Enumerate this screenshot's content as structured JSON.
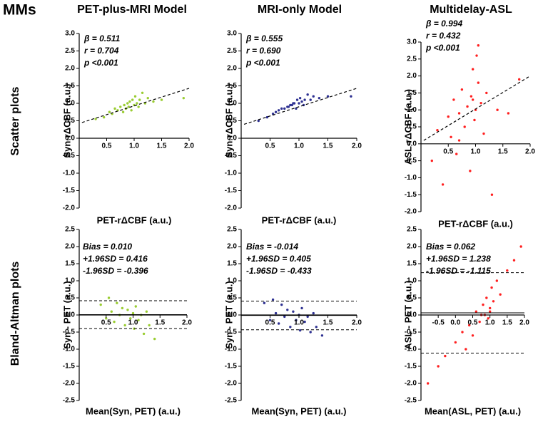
{
  "figure": {
    "label": "MMs",
    "row_labels": [
      "Scatter plots",
      "Bland-Altman plots"
    ],
    "column_titles": [
      "PET-plus-MRI Model",
      "MRI-only Model",
      "Multidelay-ASL"
    ]
  },
  "chart_data": [
    {
      "type": "scatter",
      "xlabel": "PET-rΔCBF (a.u.)",
      "ylabel": "Syn-rΔCBF (a.u.)",
      "annotations": [
        "β = 0.511",
        "r = 0.704",
        "p <0.001"
      ],
      "xlim": [
        0,
        2
      ],
      "ylim": [
        -2,
        3
      ],
      "xticks": [
        0.5,
        {
          "value": 1,
          "label": "1.0"
        },
        1.5,
        {
          "value": 2,
          "label": "2.0"
        }
      ],
      "yticks": [
        {
          "value": -2,
          "label": "-2.0"
        },
        -1.5,
        {
          "value": -1,
          "label": "-1.0"
        },
        -0.5,
        {
          "value": 0,
          "label": "0.0"
        },
        0.5,
        {
          "value": 1,
          "label": "1.0"
        },
        1.5,
        {
          "value": 2,
          "label": "2.0"
        },
        2.5,
        {
          "value": 3,
          "label": "3.0"
        }
      ],
      "color": "#9acd32",
      "x": [
        0.3,
        0.45,
        0.55,
        0.6,
        0.65,
        0.7,
        0.75,
        0.8,
        0.82,
        0.85,
        0.88,
        0.9,
        0.92,
        0.95,
        0.97,
        1.0,
        1.02,
        1.05,
        1.08,
        1.1,
        1.15,
        1.2,
        1.25,
        1.35,
        1.5,
        1.9
      ],
      "values": [
        0.55,
        0.6,
        0.75,
        0.7,
        0.85,
        0.8,
        0.9,
        0.75,
        0.95,
        0.85,
        1.0,
        0.9,
        1.05,
        0.8,
        1.1,
        0.95,
        1.2,
        1.0,
        0.9,
        1.1,
        1.3,
        1.0,
        1.15,
        1.05,
        1.1,
        1.15
      ],
      "fit_line": {
        "x": [
          0.05,
          2
        ],
        "values": [
          0.45,
          1.43
        ]
      }
    },
    {
      "type": "scatter",
      "xlabel": "PET-rΔCBF (a.u.)",
      "ylabel": "Syn-rΔCBF (a.u.)",
      "annotations": [
        "β = 0.555",
        "r = 0.690",
        "p <0.001"
      ],
      "xlim": [
        0,
        2
      ],
      "ylim": [
        -2,
        3
      ],
      "xticks": [
        0.5,
        {
          "value": 1,
          "label": "1.0"
        },
        1.5,
        {
          "value": 2,
          "label": "2.0"
        }
      ],
      "yticks": [
        {
          "value": -2,
          "label": "-2.0"
        },
        -1.5,
        {
          "value": -1,
          "label": "-1.0"
        },
        -0.5,
        {
          "value": 0,
          "label": "0.0"
        },
        0.5,
        {
          "value": 1,
          "label": "1.0"
        },
        1.5,
        {
          "value": 2,
          "label": "2.0"
        },
        2.5,
        {
          "value": 3,
          "label": "3.0"
        }
      ],
      "color": "#2e3192",
      "x": [
        0.3,
        0.45,
        0.55,
        0.6,
        0.65,
        0.7,
        0.75,
        0.8,
        0.82,
        0.85,
        0.88,
        0.9,
        0.92,
        0.95,
        0.97,
        1.0,
        1.02,
        1.05,
        1.08,
        1.1,
        1.15,
        1.2,
        1.25,
        1.35,
        1.5,
        1.9
      ],
      "values": [
        0.5,
        0.6,
        0.7,
        0.75,
        0.8,
        0.85,
        0.85,
        0.9,
        0.9,
        0.95,
        0.95,
        1.0,
        1.0,
        0.85,
        1.1,
        1.0,
        1.15,
        1.05,
        0.95,
        1.1,
        1.25,
        1.1,
        1.2,
        1.15,
        1.2,
        1.2
      ],
      "fit_line": {
        "x": [
          0.05,
          2
        ],
        "values": [
          0.4,
          1.43
        ]
      }
    },
    {
      "type": "scatter",
      "xlabel": "PET-rΔCBF (a.u.)",
      "ylabel": "ASL-rΔCBF (a.u.)",
      "annotations": [
        "β = 0.994",
        "r = 0.432",
        "p <0.001"
      ],
      "xlim": [
        0,
        2
      ],
      "ylim": [
        -2,
        3
      ],
      "xticks": [
        0.5,
        {
          "value": 1,
          "label": "1.0"
        },
        1.5,
        {
          "value": 2,
          "label": "2.0"
        }
      ],
      "yticks": [
        {
          "value": -2,
          "label": "-2.0"
        },
        -1.5,
        {
          "value": -1,
          "label": "-1.0"
        },
        -0.5,
        {
          "value": 0,
          "label": "0.0"
        },
        0.5,
        {
          "value": 1,
          "label": "1.0"
        },
        1.5,
        {
          "value": 2,
          "label": "2.0"
        },
        2.5,
        {
          "value": 3,
          "label": "3.0"
        }
      ],
      "color": "#ff2020",
      "x": [
        0.2,
        0.3,
        0.4,
        0.5,
        0.55,
        0.6,
        0.65,
        0.7,
        0.75,
        0.8,
        0.85,
        0.9,
        0.92,
        0.95,
        0.98,
        1.0,
        1.02,
        1.05,
        1.1,
        1.15,
        1.2,
        1.3,
        1.4,
        1.6,
        1.8,
        0.95,
        0.7,
        1.05
      ],
      "values": [
        -0.5,
        0.4,
        -1.2,
        0.8,
        0.2,
        1.3,
        -0.3,
        0.9,
        1.6,
        0.5,
        1.1,
        -0.8,
        1.4,
        2.2,
        0.7,
        1.0,
        2.6,
        1.8,
        1.2,
        0.3,
        1.5,
        -1.5,
        1.0,
        0.9,
        1.9,
        1.3,
        0.1,
        2.9
      ],
      "fit_line": {
        "x": [
          0.05,
          2
        ],
        "values": [
          0.1,
          2.0
        ]
      }
    },
    {
      "type": "bland-altman",
      "xlabel": "Mean(Syn, PET) (a.u.)",
      "ylabel": "Syn - PET (a.u.)",
      "annotations": [
        "Bias = 0.010",
        "+1.96SD = 0.416",
        "-1.96SD = -0.396"
      ],
      "xlim": [
        0,
        2
      ],
      "ylim": [
        -2.5,
        2.5
      ],
      "xticks": [
        0.5,
        {
          "value": 1,
          "label": "1.0"
        },
        1.5,
        {
          "value": 2,
          "label": "2.0"
        }
      ],
      "yticks": [
        -2.5,
        {
          "value": -2,
          "label": "-2.0"
        },
        -1.5,
        {
          "value": -1,
          "label": "-1.0"
        },
        -0.5,
        {
          "value": 0,
          "label": "0.0"
        },
        0.5,
        {
          "value": 1,
          "label": "1.0"
        },
        1.5,
        {
          "value": 2,
          "label": "2.0"
        },
        2.5
      ],
      "color": "#9acd32",
      "x": [
        0.4,
        0.5,
        0.55,
        0.6,
        0.65,
        0.7,
        0.75,
        0.8,
        0.85,
        0.9,
        0.95,
        1.0,
        1.02,
        1.05,
        1.1,
        1.15,
        1.2,
        1.25,
        1.3,
        1.4
      ],
      "values": [
        0.3,
        -0.1,
        0.5,
        0.1,
        -0.2,
        0.35,
        0.0,
        0.2,
        -0.3,
        0.15,
        -0.1,
        0.05,
        -0.4,
        0.25,
        -0.15,
        0.0,
        -0.55,
        0.1,
        -0.3,
        -0.7
      ],
      "reference_lines": [
        0.01,
        0.416,
        -0.396
      ],
      "reference_styles": [
        "solid",
        "dashed",
        "dashed"
      ]
    },
    {
      "type": "bland-altman",
      "xlabel": "Mean(Syn, PET) (a.u.)",
      "ylabel": "Syn - PET (a.u.)",
      "annotations": [
        "Bias = -0.014",
        "+1.96SD = 0.405",
        "-1.96SD = -0.433"
      ],
      "xlim": [
        0,
        2
      ],
      "ylim": [
        -2.5,
        2.5
      ],
      "xticks": [
        0.5,
        {
          "value": 1,
          "label": "1.0"
        },
        1.5,
        {
          "value": 2,
          "label": "2.0"
        }
      ],
      "yticks": [
        -2.5,
        {
          "value": -2,
          "label": "-2.0"
        },
        -1.5,
        {
          "value": -1,
          "label": "-1.0"
        },
        -0.5,
        {
          "value": 0,
          "label": "0.0"
        },
        0.5,
        {
          "value": 1,
          "label": "1.0"
        },
        1.5,
        {
          "value": 2,
          "label": "2.0"
        },
        2.5
      ],
      "color": "#2e3192",
      "x": [
        0.4,
        0.5,
        0.55,
        0.6,
        0.65,
        0.7,
        0.75,
        0.8,
        0.85,
        0.9,
        0.95,
        1.0,
        1.02,
        1.05,
        1.1,
        1.15,
        1.2,
        1.25,
        1.3,
        1.4
      ],
      "values": [
        0.35,
        -0.15,
        0.45,
        0.05,
        -0.25,
        0.3,
        -0.05,
        0.15,
        -0.35,
        0.1,
        -0.15,
        0.0,
        -0.45,
        0.2,
        -0.2,
        -0.05,
        -0.5,
        0.05,
        -0.35,
        -0.6
      ],
      "reference_lines": [
        -0.014,
        0.405,
        -0.433
      ],
      "reference_styles": [
        "solid",
        "dashed",
        "dashed"
      ]
    },
    {
      "type": "bland-altman",
      "xlabel": "Mean(ASL, PET) (a.u.)",
      "ylabel": "ASL - PET (a.u.)",
      "annotations": [
        "Bias = 0.062",
        "+1.96SD = 1.238",
        "-1.96SD = -1.115"
      ],
      "xlim": [
        -1,
        2
      ],
      "ylim": [
        -2.5,
        2.5
      ],
      "xticks": [
        -0.5,
        {
          "value": 0,
          "label": "0.0"
        },
        0.5,
        {
          "value": 1,
          "label": "1.0"
        },
        1.5,
        {
          "value": 2,
          "label": "2.0"
        }
      ],
      "yticks": [
        -2.5,
        {
          "value": -2,
          "label": "-2.0"
        },
        -1.5,
        {
          "value": -1,
          "label": "-1.0"
        },
        -0.5,
        {
          "value": 0,
          "label": "0.0"
        },
        0.5,
        {
          "value": 1,
          "label": "1.0"
        },
        1.5,
        {
          "value": 2,
          "label": "2.0"
        },
        2.5
      ],
      "color": "#ff2020",
      "x": [
        -0.8,
        -0.5,
        -0.3,
        0.0,
        0.2,
        0.4,
        0.5,
        0.6,
        0.7,
        0.8,
        0.85,
        0.9,
        0.95,
        1.0,
        1.05,
        1.1,
        1.2,
        1.3,
        1.5,
        1.7,
        1.9,
        0.3,
        0.75,
        1.0
      ],
      "values": [
        -2.0,
        -1.5,
        -1.2,
        -0.8,
        -0.5,
        -0.3,
        -0.6,
        0.1,
        -0.2,
        0.3,
        0.0,
        0.5,
        -0.1,
        0.2,
        0.8,
        0.4,
        1.0,
        0.6,
        1.3,
        1.6,
        2.0,
        -1.0,
        0.0,
        0.1
      ],
      "reference_lines": [
        0.062,
        1.238,
        -1.115
      ],
      "reference_styles": [
        "solid",
        "dashed",
        "dashed"
      ]
    }
  ]
}
